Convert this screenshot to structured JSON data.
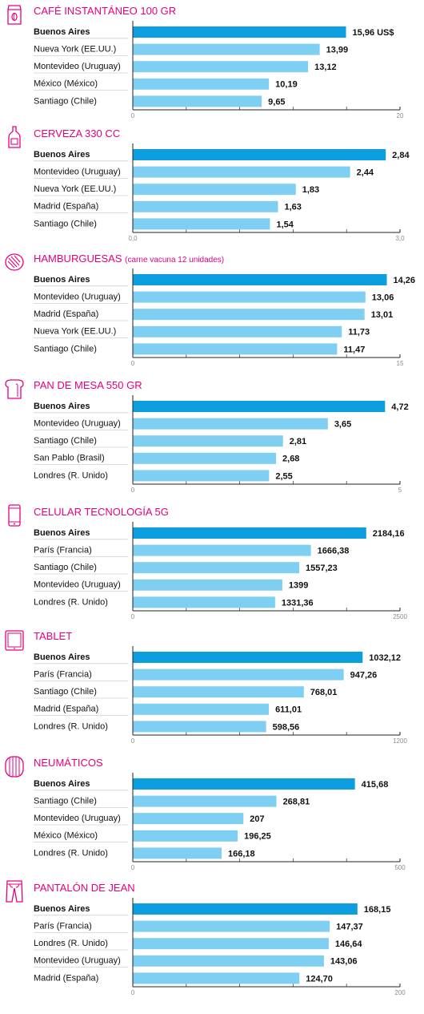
{
  "colors": {
    "accent": "#e6007e",
    "highlight": "#0d9ee0",
    "bar": "#7fcff2"
  },
  "chart_data": [
    {
      "type": "bar",
      "icon": "coffee-bag-icon",
      "title": "CAFÉ INSTANTÁNEO 100 GR",
      "subtitle": "",
      "categories": [
        "Buenos Aires",
        "Nueva York (EE.UU.)",
        "Montevideo (Uruguay)",
        "México (México)",
        "Santiago (Chile)"
      ],
      "values": [
        15.96,
        13.99,
        13.12,
        10.19,
        9.65
      ],
      "labels": [
        "15,96 US$",
        "13,99",
        "13,12",
        "10,19",
        "9,65"
      ],
      "highlight": "Buenos Aires",
      "xlim": [
        0,
        20
      ],
      "tick_labels": [
        "0",
        "20"
      ],
      "minor_ticks": 4
    },
    {
      "type": "bar",
      "icon": "beer-bottle-icon",
      "title": "CERVEZA 330 CC",
      "subtitle": "",
      "categories": [
        "Buenos Aires",
        "Montevideo (Uruguay)",
        "Nueva York (EE.UU.)",
        "Madrid (España)",
        "Santiago (Chile)"
      ],
      "values": [
        2.84,
        2.44,
        1.83,
        1.63,
        1.54
      ],
      "labels": [
        "2,84",
        "2,44",
        "1,83",
        "1,63",
        "1,54"
      ],
      "highlight": "Buenos Aires",
      "xlim": [
        0,
        3
      ],
      "tick_labels": [
        "0,0",
        "3,0"
      ],
      "minor_ticks": 4
    },
    {
      "type": "bar",
      "icon": "burger-icon",
      "title": "HAMBURGUESAS",
      "subtitle": "(carne vacuna 12 unidades)",
      "categories": [
        "Buenos Aires",
        "Montevideo (Uruguay)",
        "Madrid (España)",
        "Nueva York (EE.UU.)",
        "Santiago (Chile)"
      ],
      "values": [
        14.26,
        13.06,
        13.01,
        11.73,
        11.47
      ],
      "labels": [
        "14,26",
        "13,06",
        "13,01",
        "11,73",
        "11,47"
      ],
      "highlight": "Buenos Aires",
      "xlim": [
        0,
        15
      ],
      "tick_labels": [
        "0",
        "15"
      ],
      "minor_ticks": 4
    },
    {
      "type": "bar",
      "icon": "bread-icon",
      "title": "PAN DE MESA 550 GR",
      "subtitle": "",
      "categories": [
        "Buenos Aires",
        "Montevideo (Uruguay)",
        "Santiago (Chile)",
        "San Pablo (Brasil)",
        "Londres (R. Unido)"
      ],
      "values": [
        4.72,
        3.65,
        2.81,
        2.68,
        2.55
      ],
      "labels": [
        "4,72",
        "3,65",
        "2,81",
        "2,68",
        "2,55"
      ],
      "highlight": "Buenos Aires",
      "xlim": [
        0,
        5
      ],
      "tick_labels": [
        "0",
        "5"
      ],
      "minor_ticks": 4
    },
    {
      "type": "bar",
      "icon": "phone-icon",
      "title": "CELULAR TECNOLOGÍA 5G",
      "subtitle": "",
      "categories": [
        "Buenos Aires",
        "París (Francia)",
        "Santiago (Chile)",
        "Montevideo (Uruguay)",
        "Londres (R. Unido)"
      ],
      "values": [
        2184.16,
        1666.38,
        1557.23,
        1399,
        1331.36
      ],
      "labels": [
        "2184,16",
        "1666,38",
        "1557,23",
        "1399",
        "1331,36"
      ],
      "highlight": "Buenos Aires",
      "xlim": [
        0,
        2500
      ],
      "tick_labels": [
        "0",
        "2500"
      ],
      "minor_ticks": 4
    },
    {
      "type": "bar",
      "icon": "tablet-icon",
      "title": "TABLET",
      "subtitle": "",
      "categories": [
        "Buenos Aires",
        "París (Francia)",
        "Santiago (Chile)",
        "Madrid (España)",
        "Londres (R. Unido)"
      ],
      "values": [
        1032.12,
        947.26,
        768.01,
        611.01,
        598.56
      ],
      "labels": [
        "1032,12",
        "947,26",
        "768,01",
        "611,01",
        "598,56"
      ],
      "highlight": "Buenos Aires",
      "xlim": [
        0,
        1200
      ],
      "tick_labels": [
        "0",
        "1200"
      ],
      "minor_ticks": 4
    },
    {
      "type": "bar",
      "icon": "tire-icon",
      "title": "NEUMÁTICOS",
      "subtitle": "",
      "categories": [
        "Buenos Aires",
        "Santiago (Chile)",
        "Montevideo (Uruguay)",
        "México (México)",
        "Londres (R. Unido)"
      ],
      "values": [
        415.68,
        268.81,
        207,
        196.25,
        166.18
      ],
      "labels": [
        "415,68",
        "268,81",
        "207",
        "196,25",
        "166,18"
      ],
      "highlight": "Buenos Aires",
      "xlim": [
        0,
        500
      ],
      "tick_labels": [
        "0",
        "500"
      ],
      "minor_ticks": 4
    },
    {
      "type": "bar",
      "icon": "jeans-icon",
      "title": "PANTALÓN DE JEAN",
      "subtitle": "",
      "categories": [
        "Buenos Aires",
        "París (Francia)",
        "Londres (R. Unido)",
        "Montevideo (Uruguay)",
        "Madrid (España)"
      ],
      "values": [
        168.15,
        147.37,
        146.64,
        143.06,
        124.7
      ],
      "labels": [
        "168,15",
        "147,37",
        "146,64",
        "143,06",
        "124,70"
      ],
      "highlight": "Buenos Aires",
      "xlim": [
        0,
        200
      ],
      "tick_labels": [
        "0",
        "200"
      ],
      "minor_ticks": 4
    }
  ]
}
